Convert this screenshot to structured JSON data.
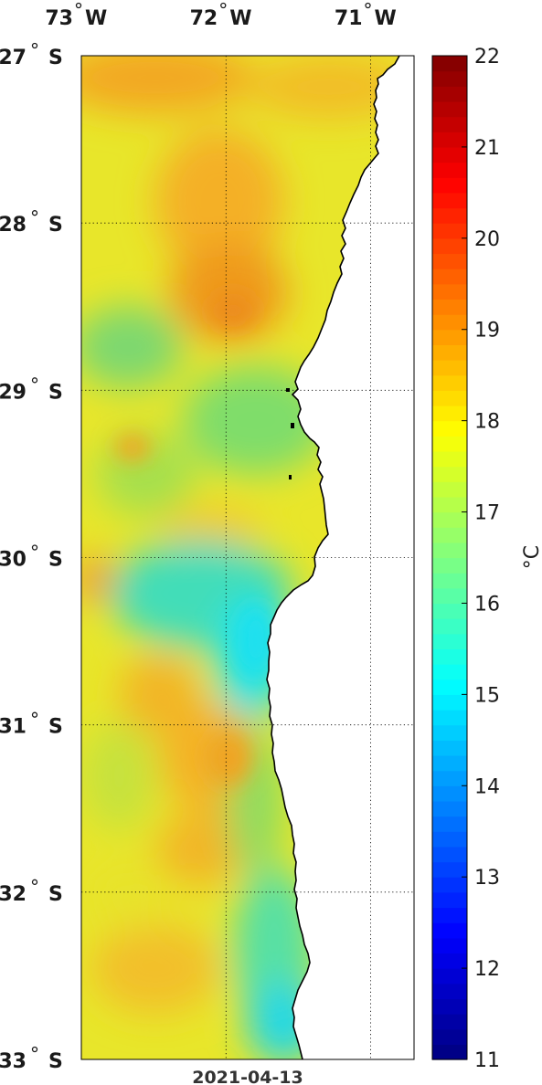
{
  "map": {
    "date": "2021-04-13",
    "lon_ticks": [
      {
        "value": -73,
        "deg": "73",
        "hemi": "W"
      },
      {
        "value": -72,
        "deg": "72",
        "hemi": "W"
      },
      {
        "value": -71,
        "deg": "71",
        "hemi": "W"
      }
    ],
    "lat_ticks": [
      {
        "value": -27,
        "deg": "27",
        "hemi": "S"
      },
      {
        "value": -28,
        "deg": "28",
        "hemi": "S"
      },
      {
        "value": -29,
        "deg": "29",
        "hemi": "S"
      },
      {
        "value": -30,
        "deg": "30",
        "hemi": "S"
      },
      {
        "value": -31,
        "deg": "31",
        "hemi": "S"
      },
      {
        "value": -32,
        "deg": "32",
        "hemi": "S"
      },
      {
        "value": -33,
        "deg": "33",
        "hemi": "S"
      }
    ],
    "lon_range": [
      -73,
      -70.7
    ],
    "lat_range": [
      -33,
      -27
    ],
    "grid": "dotted",
    "land_color": "#ffffff",
    "coast_color": "#000000"
  },
  "colorbar": {
    "unit": "°C",
    "min": 11,
    "max": 22,
    "ticks": [
      "11",
      "12",
      "13",
      "14",
      "15",
      "16",
      "17",
      "18",
      "19",
      "20",
      "21",
      "22"
    ],
    "colormap": "jet"
  }
}
